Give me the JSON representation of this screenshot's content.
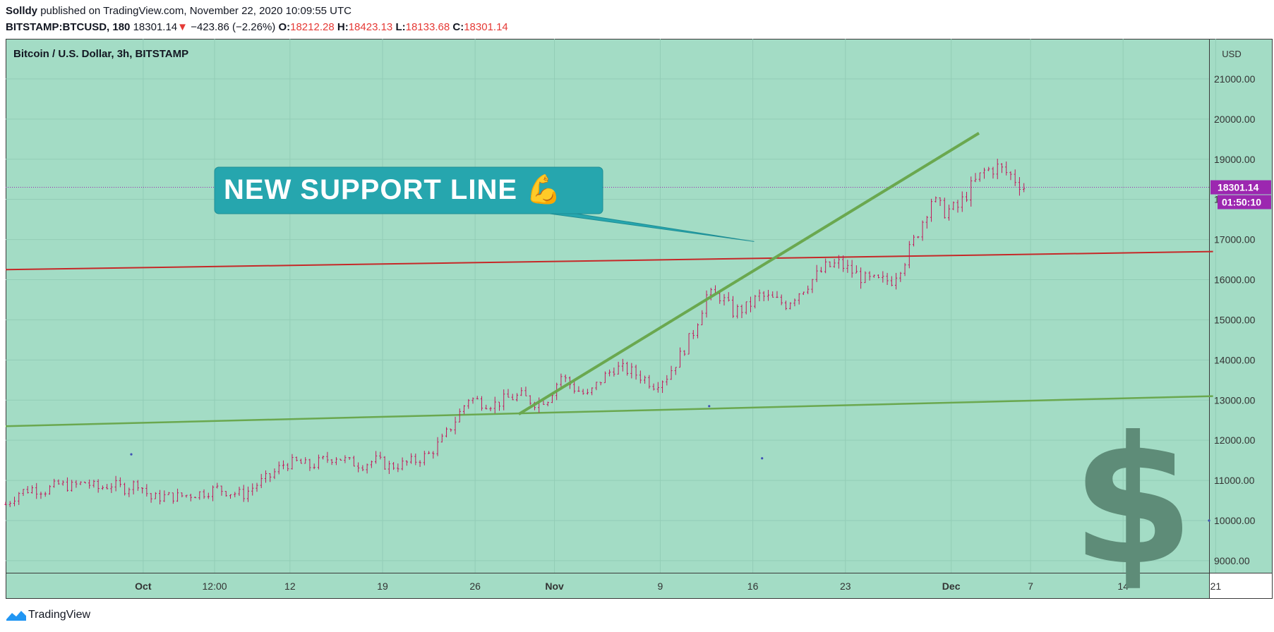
{
  "header": {
    "author": "Solldy",
    "published_text": "published on TradingView.com, November 22, 2020 10:09:55 UTC",
    "symbol": "BITSTAMP:BTCUSD, 180",
    "last": "18301.14",
    "change": "−423.86 (−2.26%)",
    "open_label": "O:",
    "open": "18212.28",
    "high_label": "H:",
    "high": "18423.13",
    "low_label": "L:",
    "low": "18133.68",
    "close_label": "C:",
    "close": "18301.14"
  },
  "footer": {
    "brand": "TradingView"
  },
  "colors": {
    "background": "#a3dcc5",
    "grid": "#93cdb6",
    "candle": "#c2185b",
    "support_line": "#6aa84f",
    "resistance_line": "#c62828",
    "callout": "#26a6ae",
    "price_label": "#9c27b0",
    "dollar_icon": "#5e8c78"
  },
  "chart_data": {
    "type": "candlestick",
    "title": "Bitcoin / U.S. Dollar, 3h, BITSTAMP",
    "currency": "USD",
    "ylim": [
      8700,
      22000
    ],
    "y_ticks": [
      9000,
      10000,
      11000,
      12000,
      13000,
      14000,
      15000,
      16000,
      17000,
      18000,
      19000,
      20000,
      21000
    ],
    "y_tick_labels": [
      "9000.00",
      "10000.00",
      "11000.00",
      "12000.00",
      "13000.00",
      "14000.00",
      "15000.00",
      "16000.00",
      "17000.00",
      "18000.00",
      "19000.00",
      "20000.00",
      "21000.00"
    ],
    "x_axis": "date (Sep 2020 – Dec 2020), day index 0 = Sep 21",
    "xlim": [
      0,
      91
    ],
    "x_ticks": [
      {
        "day": 10.4,
        "label": "Oct",
        "bold": true
      },
      {
        "day": 15.8,
        "label": "12:00",
        "bold": false
      },
      {
        "day": 21.5,
        "label": "12",
        "bold": false
      },
      {
        "day": 28.5,
        "label": "19",
        "bold": false
      },
      {
        "day": 35.5,
        "label": "26",
        "bold": false
      },
      {
        "day": 41.5,
        "label": "Nov",
        "bold": true
      },
      {
        "day": 49.5,
        "label": "9",
        "bold": false
      },
      {
        "day": 56.5,
        "label": "16",
        "bold": false
      },
      {
        "day": 63.5,
        "label": "23",
        "bold": false
      },
      {
        "day": 71.5,
        "label": "Dec",
        "bold": true
      },
      {
        "day": 77.5,
        "label": "7",
        "bold": false
      },
      {
        "day": 84.5,
        "label": "14",
        "bold": false
      },
      {
        "day": 91.5,
        "label": "21",
        "bold": false
      }
    ],
    "price_path": [
      [
        0,
        10400
      ],
      [
        1,
        10700
      ],
      [
        2,
        10800
      ],
      [
        3,
        10750
      ],
      [
        4,
        10900
      ],
      [
        5,
        10850
      ],
      [
        6,
        10950
      ],
      [
        7,
        10800
      ],
      [
        8,
        10900
      ],
      [
        9,
        10800
      ],
      [
        10,
        10950
      ],
      [
        11,
        10550
      ],
      [
        12,
        10600
      ],
      [
        13,
        10600
      ],
      [
        14,
        10650
      ],
      [
        15,
        10700
      ],
      [
        16,
        10800
      ],
      [
        17,
        10700
      ],
      [
        18,
        10650
      ],
      [
        19,
        10900
      ],
      [
        20,
        11100
      ],
      [
        21,
        11400
      ],
      [
        22,
        11450
      ],
      [
        23,
        11350
      ],
      [
        24,
        11500
      ],
      [
        25,
        11600
      ],
      [
        26,
        11450
      ],
      [
        27,
        11400
      ],
      [
        28,
        11500
      ],
      [
        29,
        11350
      ],
      [
        30,
        11400
      ],
      [
        31,
        11500
      ],
      [
        32,
        11650
      ],
      [
        33,
        12000
      ],
      [
        34,
        12500
      ],
      [
        35,
        13050
      ],
      [
        36,
        12950
      ],
      [
        37,
        12900
      ],
      [
        38,
        13050
      ],
      [
        39,
        13100
      ],
      [
        40,
        12950
      ],
      [
        41,
        13050
      ],
      [
        42,
        13600
      ],
      [
        43,
        13300
      ],
      [
        44,
        13100
      ],
      [
        45,
        13500
      ],
      [
        46,
        13800
      ],
      [
        47,
        13750
      ],
      [
        48,
        13600
      ],
      [
        49,
        13400
      ],
      [
        50,
        13600
      ],
      [
        51,
        14100
      ],
      [
        52,
        14700
      ],
      [
        53,
        15600
      ],
      [
        54,
        15600
      ],
      [
        55,
        15200
      ],
      [
        56,
        15300
      ],
      [
        57,
        15600
      ],
      [
        58,
        15500
      ],
      [
        59,
        15400
      ],
      [
        60,
        15700
      ],
      [
        61,
        16000
      ],
      [
        62,
        16300
      ],
      [
        63,
        16400
      ],
      [
        64,
        16200
      ],
      [
        65,
        16000
      ],
      [
        66,
        15950
      ],
      [
        67,
        16000
      ],
      [
        68,
        16500
      ],
      [
        69,
        17200
      ],
      [
        70,
        18000
      ],
      [
        71,
        17700
      ],
      [
        72,
        17800
      ],
      [
        73,
        18300
      ],
      [
        74,
        18700
      ],
      [
        75,
        18800
      ],
      [
        76,
        18600
      ],
      [
        77,
        18301
      ]
    ],
    "candles_per_day": 3,
    "last_price": 18301.14,
    "last_price_label": "18301.14",
    "countdown_label": "01:50:10",
    "annotations": {
      "callout_text": "NEW SUPPORT LINE 💪",
      "support_trendline": {
        "from": {
          "day": 38.8,
          "price": 12650
        },
        "to": {
          "day": 73.6,
          "price": 19650
        }
      },
      "resistance_line": {
        "from": {
          "day": 0,
          "price": 16250
        },
        "to": {
          "day": 91.3,
          "price": 16700
        }
      },
      "lower_support_line": {
        "from": {
          "day": 0,
          "price": 12350
        },
        "to": {
          "day": 91.3,
          "price": 13100
        }
      },
      "callout_pointer_to": {
        "day": 56.6,
        "price": 16950
      },
      "dots": [
        {
          "day": 9.5,
          "price": 11650
        },
        {
          "day": 53.2,
          "price": 12850
        },
        {
          "day": 57.2,
          "price": 11550
        },
        {
          "day": 91.0,
          "price": 10000
        }
      ],
      "icon": "dollar-icon"
    }
  }
}
